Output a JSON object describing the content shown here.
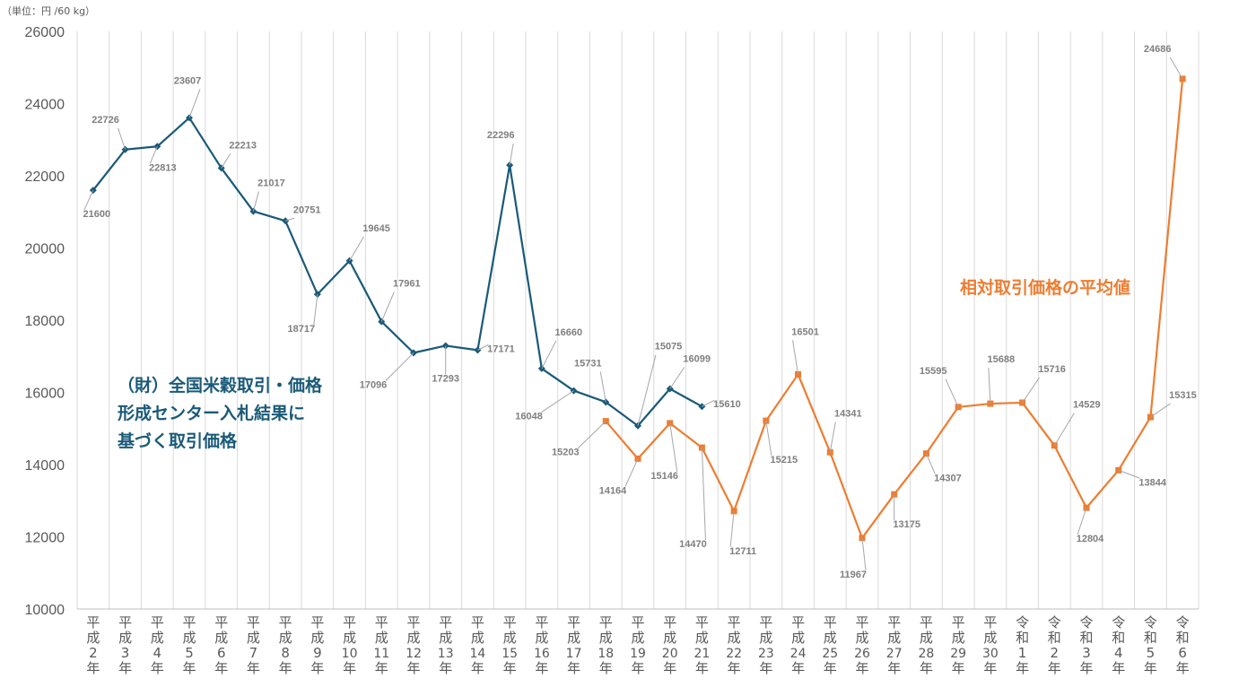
{
  "unit_label": "（単位：円 /60 kg）",
  "annotations": {
    "blue_lines": [
      "（財）全国米穀取引・価格",
      "形成センター入札結果に",
      "基づく取引価格"
    ],
    "orange": "相対取引価格の平均値"
  },
  "colors": {
    "series_blue": "#1a5a78",
    "series_orange": "#ed7d31",
    "grid": "#d9d9d9",
    "axis_text": "#595959",
    "data_label": "#7f7f7f"
  },
  "chart_data": {
    "type": "line",
    "ylim": [
      10000,
      26000
    ],
    "yticks": [
      10000,
      12000,
      14000,
      16000,
      18000,
      20000,
      22000,
      24000,
      26000
    ],
    "categories": [
      [
        "平",
        "成",
        "2",
        "年"
      ],
      [
        "平",
        "成",
        "3",
        "年"
      ],
      [
        "平",
        "成",
        "4",
        "年"
      ],
      [
        "平",
        "成",
        "5",
        "年"
      ],
      [
        "平",
        "成",
        "6",
        "年"
      ],
      [
        "平",
        "成",
        "7",
        "年"
      ],
      [
        "平",
        "成",
        "8",
        "年"
      ],
      [
        "平",
        "成",
        "9",
        "年"
      ],
      [
        "平",
        "成",
        "10",
        "年"
      ],
      [
        "平",
        "成",
        "11",
        "年"
      ],
      [
        "平",
        "成",
        "12",
        "年"
      ],
      [
        "平",
        "成",
        "13",
        "年"
      ],
      [
        "平",
        "成",
        "14",
        "年"
      ],
      [
        "平",
        "成",
        "15",
        "年"
      ],
      [
        "平",
        "成",
        "16",
        "年"
      ],
      [
        "平",
        "成",
        "17",
        "年"
      ],
      [
        "平",
        "成",
        "18",
        "年"
      ],
      [
        "平",
        "成",
        "19",
        "年"
      ],
      [
        "平",
        "成",
        "20",
        "年"
      ],
      [
        "平",
        "成",
        "21",
        "年"
      ],
      [
        "平",
        "成",
        "22",
        "年"
      ],
      [
        "平",
        "成",
        "23",
        "年"
      ],
      [
        "平",
        "成",
        "24",
        "年"
      ],
      [
        "平",
        "成",
        "25",
        "年"
      ],
      [
        "平",
        "成",
        "26",
        "年"
      ],
      [
        "平",
        "成",
        "27",
        "年"
      ],
      [
        "平",
        "成",
        "28",
        "年"
      ],
      [
        "平",
        "成",
        "29",
        "年"
      ],
      [
        "平",
        "成",
        "30",
        "年"
      ],
      [
        "令",
        "和",
        "1",
        "年"
      ],
      [
        "令",
        "和",
        "2",
        "年"
      ],
      [
        "令",
        "和",
        "3",
        "年"
      ],
      [
        "令",
        "和",
        "4",
        "年"
      ],
      [
        "令",
        "和",
        "5",
        "年"
      ],
      [
        "令",
        "和",
        "6",
        "年"
      ]
    ],
    "series": [
      {
        "color": "#1a5a78",
        "marker": "diamond",
        "values": [
          21600,
          22726,
          22813,
          23607,
          22213,
          21017,
          20751,
          18717,
          19645,
          17961,
          17096,
          17293,
          17171,
          22296,
          16660,
          16048,
          15731,
          15075,
          16099,
          15610,
          null,
          null,
          null,
          null,
          null,
          null,
          null,
          null,
          null,
          null,
          null,
          null,
          null,
          null,
          null
        ]
      },
      {
        "color": "#ed7d31",
        "marker": "square",
        "values": [
          null,
          null,
          null,
          null,
          null,
          null,
          null,
          null,
          null,
          null,
          null,
          null,
          null,
          null,
          null,
          null,
          15203,
          14164,
          15146,
          14470,
          12711,
          15215,
          16501,
          14341,
          11967,
          13175,
          14307,
          15595,
          15688,
          15716,
          14529,
          12804,
          13844,
          15315,
          24686
        ]
      }
    ]
  }
}
